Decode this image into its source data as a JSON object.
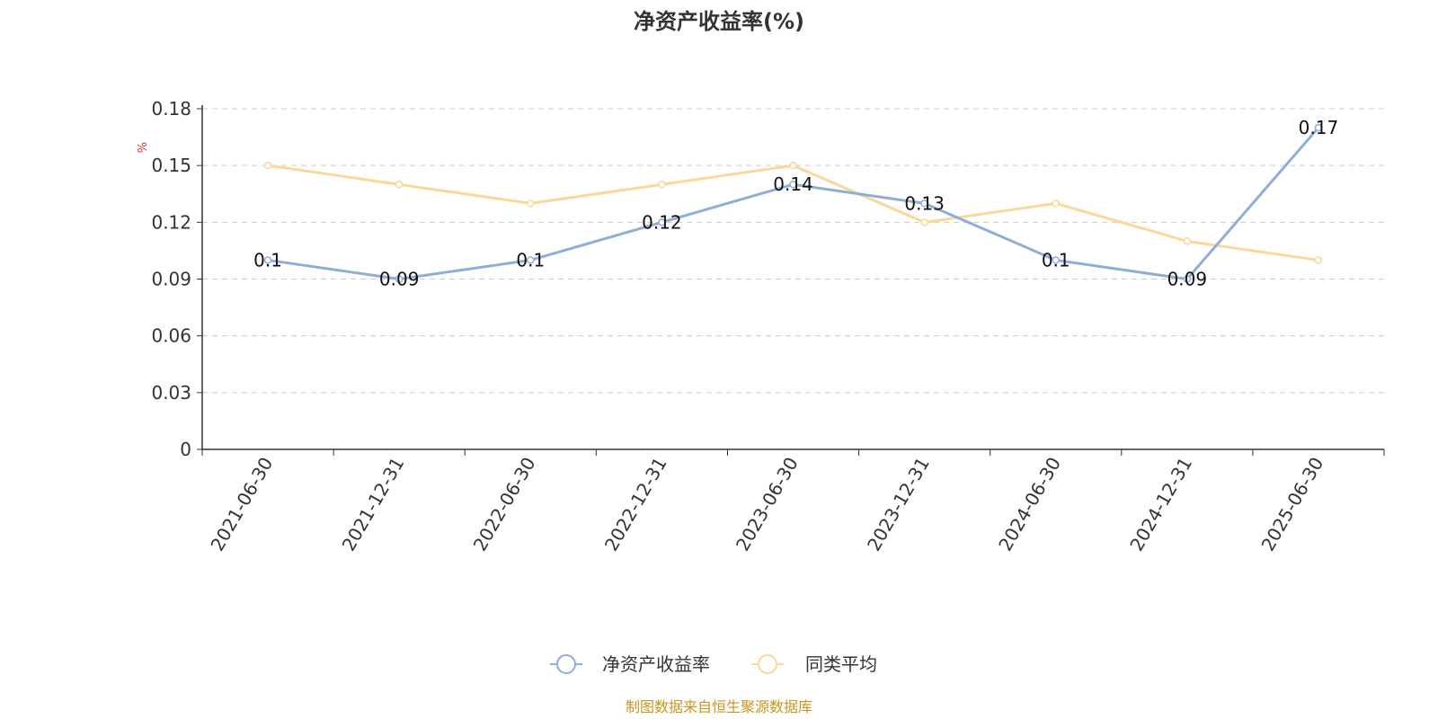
{
  "chart_data": {
    "type": "line",
    "title": "净资产收益率(%)",
    "ylabel": "%",
    "xlabel": "",
    "categories": [
      "2021-06-30",
      "2021-12-31",
      "2022-06-30",
      "2022-12-31",
      "2023-06-30",
      "2023-12-31",
      "2024-06-30",
      "2024-12-31",
      "2025-06-30"
    ],
    "ylim": [
      0,
      0.18
    ],
    "yticks": [
      "0",
      "0.03",
      "0.06",
      "0.09",
      "0.12",
      "0.15",
      "0.18"
    ],
    "grid": true,
    "legend_position": "bottom-center",
    "series": [
      {
        "name": "净资产收益率",
        "color": "#8eaed8",
        "values": [
          0.1,
          0.09,
          0.1,
          0.12,
          0.14,
          0.13,
          0.1,
          0.09,
          0.17
        ],
        "data_labels": [
          "0.1",
          "0.09",
          "0.1",
          "0.12",
          "0.14",
          "0.13",
          "0.1",
          "0.09",
          "0.17"
        ]
      },
      {
        "name": "同类平均",
        "color": "#fbd899",
        "values": [
          0.15,
          0.14,
          0.13,
          0.14,
          0.15,
          0.12,
          0.13,
          0.11,
          0.1
        ]
      }
    ],
    "source": "制图数据来自恒生聚源数据库"
  }
}
